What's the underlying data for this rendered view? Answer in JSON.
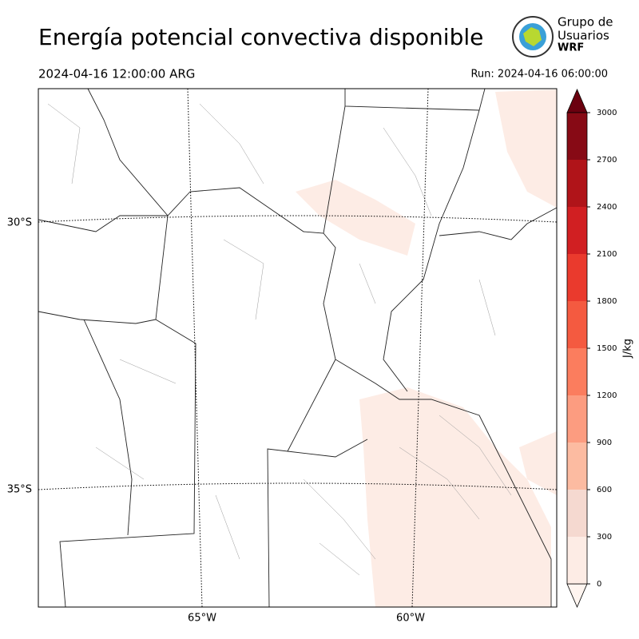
{
  "header": {
    "title": "Energía potencial convectiva disponible",
    "valid_time": "2024-04-16 12:00:00 ARG",
    "run": "Run: 2024-04-16 06:00:00"
  },
  "logo": {
    "line1": "Grupo de",
    "line2": "Usuarios",
    "line3": "WRF"
  },
  "map": {
    "lat_labels": [
      "30°S",
      "35°S"
    ],
    "lon_labels": [
      "65°W",
      "60°W"
    ]
  },
  "colorbar": {
    "label": "J/kg",
    "ticks": [
      0,
      300,
      600,
      900,
      1200,
      1500,
      1800,
      2100,
      2400,
      2700,
      3000
    ],
    "colors": [
      "#fdece5",
      "#f5d9d0",
      "#fcbba1",
      "#fc9c80",
      "#fb7d5e",
      "#f45a40",
      "#ea3a2d",
      "#d11f22",
      "#b01419",
      "#870a15"
    ],
    "under_color": "#fff5f0",
    "over_color": "#6b000f"
  }
}
